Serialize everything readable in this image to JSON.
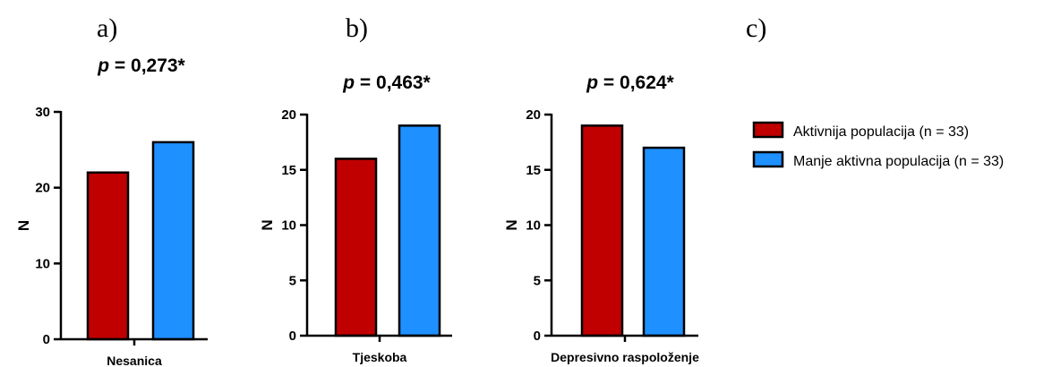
{
  "panel_letters": [
    "a)",
    "b)",
    "c)"
  ],
  "legend": [
    {
      "label": "Aktivnija populacija (n = 33)",
      "color": "#c00000"
    },
    {
      "label": "Manje aktivna populacija (n = 33)",
      "color": "#1e90ff"
    }
  ],
  "chart_data": [
    {
      "type": "bar",
      "title_p": "p",
      "title_rest": " = 0,273*",
      "ylabel": "N",
      "xlabel": "Nesanica",
      "ylim": [
        0,
        30
      ],
      "yticks": [
        0,
        10,
        20,
        30
      ],
      "series": [
        {
          "name": "Aktivnija populacija (n = 33)",
          "values": [
            22
          ]
        },
        {
          "name": "Manje aktivna populacija (n = 33)",
          "values": [
            26
          ]
        }
      ]
    },
    {
      "type": "bar",
      "title_p": "p",
      "title_rest": " = 0,463*",
      "ylabel": "N",
      "xlabel": "Tjeskoba",
      "ylim": [
        0,
        20
      ],
      "yticks": [
        0,
        5,
        10,
        15,
        20
      ],
      "series": [
        {
          "name": "Aktivnija populacija (n = 33)",
          "values": [
            16
          ]
        },
        {
          "name": "Manje aktivna populacija (n = 33)",
          "values": [
            19
          ]
        }
      ]
    },
    {
      "type": "bar",
      "title_p": "p",
      "title_rest": " = 0,624*",
      "ylabel": "N",
      "xlabel": "Depresivno raspoloženje",
      "ylim": [
        0,
        20
      ],
      "yticks": [
        0,
        5,
        10,
        15,
        20
      ],
      "series": [
        {
          "name": "Aktivnija populacija (n = 33)",
          "values": [
            19
          ]
        },
        {
          "name": "Manje aktivna populacija (n = 33)",
          "values": [
            17
          ]
        }
      ]
    }
  ]
}
